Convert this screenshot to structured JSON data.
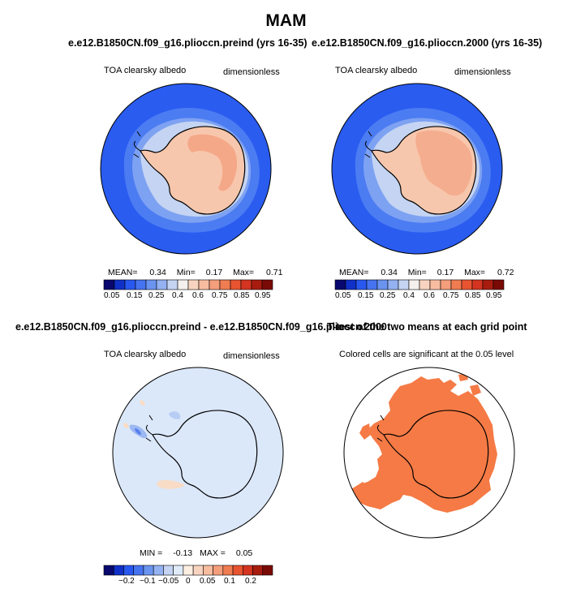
{
  "figure": {
    "title": "MAM"
  },
  "colormaps": {
    "abs": [
      "#08086e",
      "#1030c8",
      "#2858f0",
      "#4674f0",
      "#6a94f0",
      "#94b2f2",
      "#c4d4f2",
      "#f4f0ee",
      "#f8d4c0",
      "#f8bca0",
      "#f49e7c",
      "#f07c52",
      "#e85430",
      "#d43420",
      "#a81c10",
      "#7a0a06"
    ],
    "diff": [
      "#08086e",
      "#1030c8",
      "#2858f0",
      "#4674f0",
      "#6a94f0",
      "#94b2f2",
      "#c4d4f2",
      "#e0ebfa",
      "#fdeee2",
      "#f8d4c0",
      "#f8bca0",
      "#f49e7c",
      "#f07c52",
      "#e85430",
      "#d43420",
      "#a81c10",
      "#7a0a06"
    ]
  },
  "panels": {
    "p1": {
      "case_title": "e.e12.B1850CN.f09_g16.plioccn.preind (yrs 16-35)",
      "variable_label": "TOA clearsky albedo",
      "units_label": "dimensionless",
      "mean_label": "MEAN=",
      "mean": "0.34",
      "min_label": "Min=",
      "min": "0.17",
      "max_label": "Max=",
      "max": "0.71",
      "colorbar_ticks": [
        "0.05",
        "0.15",
        "0.25",
        "0.4",
        "0.6",
        "0.75",
        "0.85",
        "0.95"
      ]
    },
    "p2": {
      "case_title": "e.e12.B1850CN.f09_g16.plioccn.2000 (yrs 16-35)",
      "variable_label": "TOA clearsky albedo",
      "units_label": "dimensionless",
      "mean_label": "MEAN=",
      "mean": "0.34",
      "min_label": "Min=",
      "min": "0.17",
      "max_label": "Max=",
      "max": "0.72",
      "colorbar_ticks": [
        "0.05",
        "0.15",
        "0.25",
        "0.4",
        "0.6",
        "0.75",
        "0.85",
        "0.95"
      ]
    },
    "p3": {
      "case_title": "e.e12.B1850CN.f09_g16.plioccn.preind - e.e12.B1850CN.f09_g16.plioccn.2000",
      "variable_label": "TOA clearsky albedo",
      "units_label": "dimensionless",
      "min_label": "MIN =",
      "min": "-0.13",
      "max_label": "MAX =",
      "max": "0.05",
      "colorbar_ticks": [
        "−0.2",
        "−0.1",
        "−0.05",
        "0",
        "0.05",
        "0.1",
        "0.2"
      ]
    },
    "p4": {
      "case_title": "T-test of the two means at each grid point",
      "caption": "Colored cells are significant at the 0.05 level",
      "significant_color": "#f57a45"
    }
  }
}
